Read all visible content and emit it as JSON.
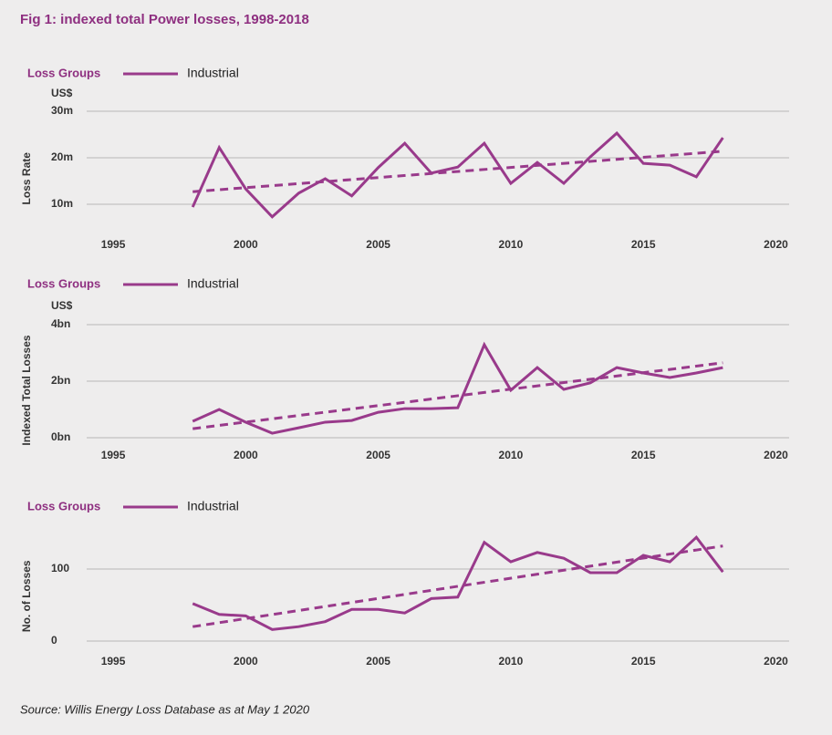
{
  "title": "Fig 1: indexed total Power losses, 1998-2018",
  "source": "Source: Willis Energy Loss Database as at May 1 2020",
  "chart_data": [
    {
      "type": "line",
      "ylabel": "Loss Rate",
      "yunit": "US$",
      "legend_title": "Loss Groups",
      "grid": true,
      "x": [
        1998,
        1999,
        2000,
        2001,
        2002,
        2003,
        2004,
        2005,
        2006,
        2007,
        2008,
        2009,
        2010,
        2011,
        2012,
        2013,
        2014,
        2015,
        2016,
        2017,
        2018
      ],
      "series": [
        {
          "name": "Industrial",
          "color": "#993a8b",
          "values": [
            9.4,
            22.2,
            13.3,
            7.3,
            12.4,
            15.5,
            11.8,
            17.9,
            23.1,
            16.7,
            18.0,
            23.1,
            14.5,
            19.0,
            14.5,
            20.2,
            25.3,
            18.8,
            18.4,
            15.9,
            24.3
          ]
        }
      ],
      "trendline": {
        "x": [
          1998,
          2018
        ],
        "values": [
          12.7,
          21.4
        ],
        "color": "#993a8b"
      },
      "xlim": [
        1994,
        2020.5
      ],
      "xticks": [
        1995,
        2000,
        2005,
        2010,
        2015,
        2020
      ],
      "ylim": [
        5,
        30
      ],
      "yticks": [
        {
          "value": 10,
          "label": "10m"
        },
        {
          "value": 20,
          "label": "20m"
        },
        {
          "value": 30,
          "label": "30m"
        }
      ]
    },
    {
      "type": "line",
      "ylabel": "Indexed Total Losses",
      "yunit": "US$",
      "legend_title": "Loss Groups",
      "grid": true,
      "x": [
        1998,
        1999,
        2000,
        2001,
        2002,
        2003,
        2004,
        2005,
        2006,
        2007,
        2008,
        2009,
        2010,
        2011,
        2012,
        2013,
        2014,
        2015,
        2016,
        2017,
        2018
      ],
      "series": [
        {
          "name": "Industrial",
          "color": "#993a8b",
          "values": [
            0.58,
            1.0,
            0.55,
            0.16,
            0.35,
            0.55,
            0.61,
            0.9,
            1.03,
            1.03,
            1.06,
            3.29,
            1.68,
            2.48,
            1.71,
            1.94,
            2.48,
            2.29,
            2.13,
            2.29,
            2.48
          ]
        }
      ],
      "trendline": {
        "x": [
          1998,
          2018
        ],
        "values": [
          0.32,
          2.65
        ],
        "color": "#993a8b"
      },
      "xlim": [
        1994,
        2020.5
      ],
      "xticks": [
        1995,
        2000,
        2005,
        2010,
        2015,
        2020
      ],
      "ylim": [
        0,
        4
      ],
      "yticks": [
        {
          "value": 0,
          "label": "0bn"
        },
        {
          "value": 2,
          "label": "2bn"
        },
        {
          "value": 4,
          "label": "4bn"
        }
      ]
    },
    {
      "type": "line",
      "ylabel": "No. of Losses",
      "legend_title": "Loss Groups",
      "grid": true,
      "x": [
        1998,
        1999,
        2000,
        2001,
        2002,
        2003,
        2004,
        2005,
        2006,
        2007,
        2008,
        2009,
        2010,
        2011,
        2012,
        2013,
        2014,
        2015,
        2016,
        2017,
        2018
      ],
      "series": [
        {
          "name": "Industrial",
          "color": "#993a8b",
          "values": [
            52,
            37,
            35,
            16,
            20,
            27,
            44,
            44,
            39,
            59,
            61,
            137,
            110,
            123,
            115,
            95,
            95,
            119,
            110,
            144,
            96
          ]
        }
      ],
      "trendline": {
        "x": [
          1998,
          2018
        ],
        "values": [
          20,
          132
        ],
        "color": "#993a8b"
      },
      "xlim": [
        1994,
        2020.5
      ],
      "xticks": [
        1995,
        2000,
        2005,
        2010,
        2015,
        2020
      ],
      "ylim": [
        0,
        150
      ],
      "yticks": [
        0,
        100
      ]
    }
  ]
}
